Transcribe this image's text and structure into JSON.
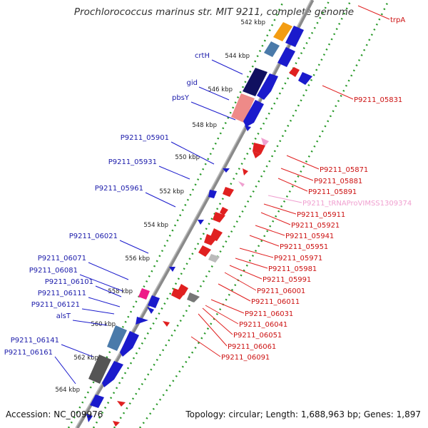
{
  "title": "Prochlorococcus marinus str. MIT 9211, complete genome",
  "footer": {
    "accession": "Accession: NC_009976",
    "summary": "Topology: circular; Length: 1,688,963 bp; Genes: 1,897"
  },
  "colors": {
    "forward_cds": "#1a1acc",
    "reverse_cds": "#e02020",
    "gene_label_forward": "#1a1aaa",
    "gene_label_reverse": "#cc1111",
    "trna": "#f0a0d0",
    "backbone": "#8a8a8a",
    "tick_dots": "#2a9a2a"
  },
  "diagram": {
    "ticks": [
      "542 kbp",
      "544 kbp",
      "546 kbp",
      "548 kbp",
      "550 kbp",
      "552 kbp",
      "554 kbp",
      "556 kbp",
      "558 kbp",
      "560 kbp",
      "562 kbp",
      "564 kbp"
    ],
    "labels_forward": [
      "crtH",
      "gid",
      "pbsY",
      "P9211_05901",
      "P9211_05931",
      "P9211_05961",
      "P9211_06021",
      "P9211_06071",
      "P9211_06081",
      "P9211_06101",
      "P9211_06111",
      "P9211_06121",
      "alsT",
      "P9211_06141",
      "P9211_06161"
    ],
    "labels_reverse": [
      "trpA",
      "P9211_05831",
      "P9211_05871",
      "P9211_05881",
      "P9211_05891",
      "P9211_tRNAProVIMSS1309374",
      "P9211_05911",
      "P9211_05921",
      "P9211_05941",
      "P9211_05951",
      "P9211_05971",
      "P9211_05981",
      "P9211_05991",
      "P9211_06001",
      "P9211_06011",
      "P9211_06031",
      "P9211_06041",
      "P9211_06051",
      "P9211_06061",
      "P9211_06091"
    ]
  }
}
